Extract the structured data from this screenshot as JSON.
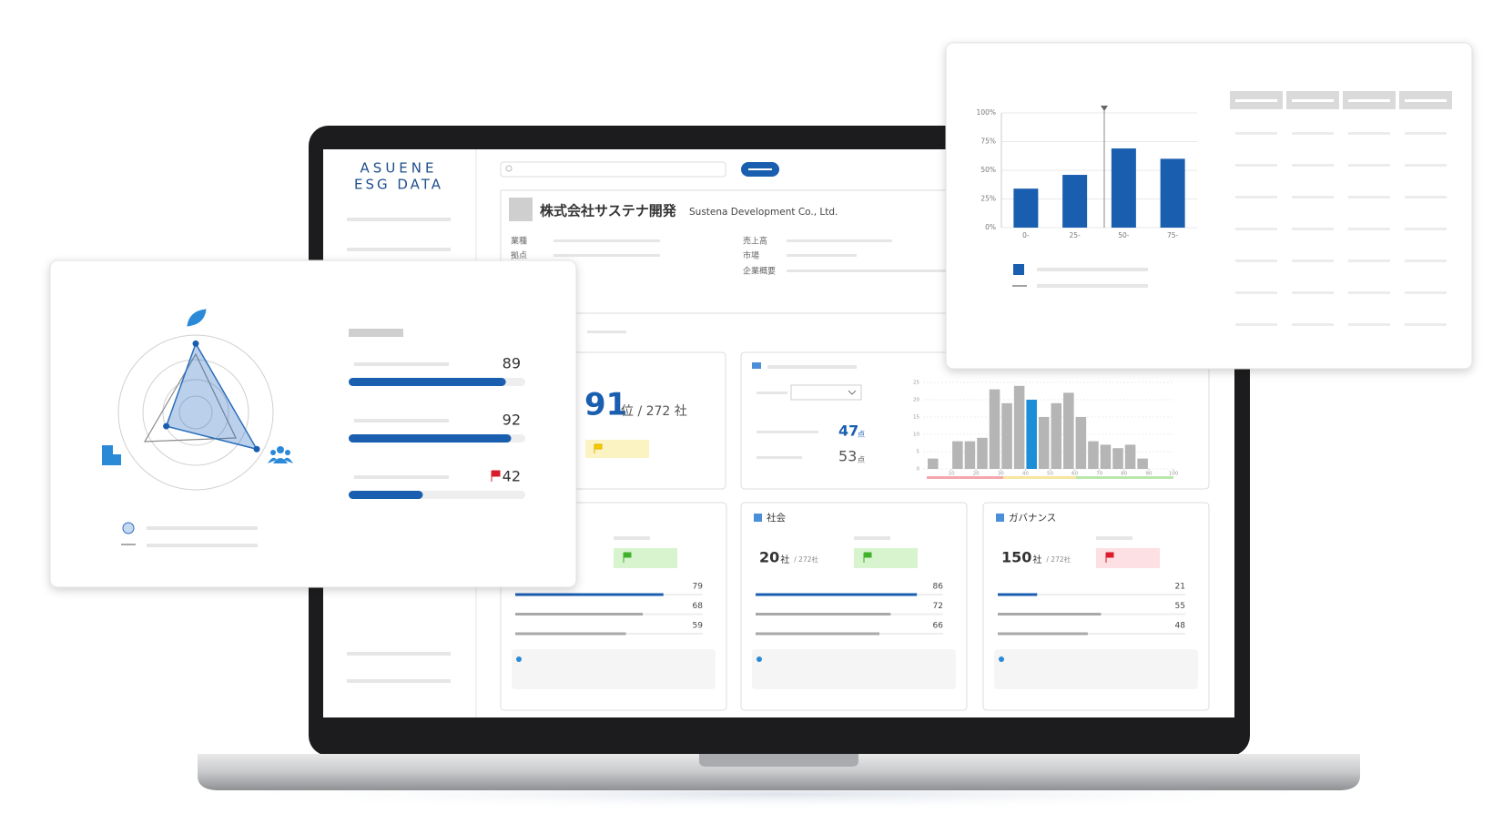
{
  "app": {
    "logo": [
      "ASUENE",
      "ESG DATA"
    ],
    "company": {
      "name_ja": "株式会社サステナ開発",
      "name_en": "Sustena Development Co., Ltd.",
      "fields": [
        "業種",
        "拠点",
        "売上高",
        "市場",
        "企業概要"
      ]
    },
    "score_max": 100,
    "rank": {
      "value": 91,
      "suffix": "位 / 272 社"
    },
    "scores": [
      {
        "value": 47,
        "unit": "点"
      },
      {
        "value": 53,
        "unit": "点"
      }
    ],
    "radar": {
      "scores": [
        89,
        92,
        42
      ]
    },
    "cards": [
      {
        "bars": [
          79,
          68,
          59
        ]
      },
      {
        "title": "社会",
        "count": 20,
        "unit": "社",
        "total": "/ 272社",
        "bars": [
          86,
          72,
          66
        ]
      },
      {
        "title": "ガバナンス",
        "count": 150,
        "unit": "社",
        "total": "/ 272社",
        "bars": [
          21,
          55,
          48
        ]
      }
    ]
  },
  "chart_data": [
    {
      "type": "bar",
      "categories": [
        "0-",
        "25-",
        "50-",
        "75-"
      ],
      "values": [
        34,
        46,
        69,
        60
      ],
      "color": "#1a5eb0",
      "ylim": [
        0,
        100
      ],
      "yticks": [
        {
          "value": 0,
          "label": "0%"
        },
        {
          "value": 25,
          "label": "25%"
        },
        {
          "value": 50,
          "label": "50%"
        },
        {
          "value": 75,
          "label": "75%"
        },
        {
          "value": 100,
          "label": "100%"
        }
      ],
      "grid": true
    },
    {
      "type": "histogram",
      "bins": [
        0,
        5,
        10,
        15,
        20,
        25,
        30,
        35,
        40,
        45,
        50,
        55,
        60,
        65,
        70,
        75,
        80,
        85,
        90,
        95,
        100
      ],
      "counts": [
        3,
        0,
        8,
        8,
        9,
        23,
        19,
        24,
        20,
        15,
        19,
        22,
        15,
        8,
        7,
        6,
        7,
        3,
        0,
        0
      ],
      "color": "#b5b5b5",
      "highlight": 8,
      "highlight_color": "#1a8fd8",
      "xlim": [
        0,
        100
      ],
      "xticks": [
        10,
        20,
        30,
        40,
        50,
        60,
        70,
        80,
        90,
        100
      ],
      "ylim": [
        0,
        25
      ],
      "yticks": [
        0,
        5,
        10,
        15,
        20,
        25
      ],
      "grid": true
    }
  ]
}
